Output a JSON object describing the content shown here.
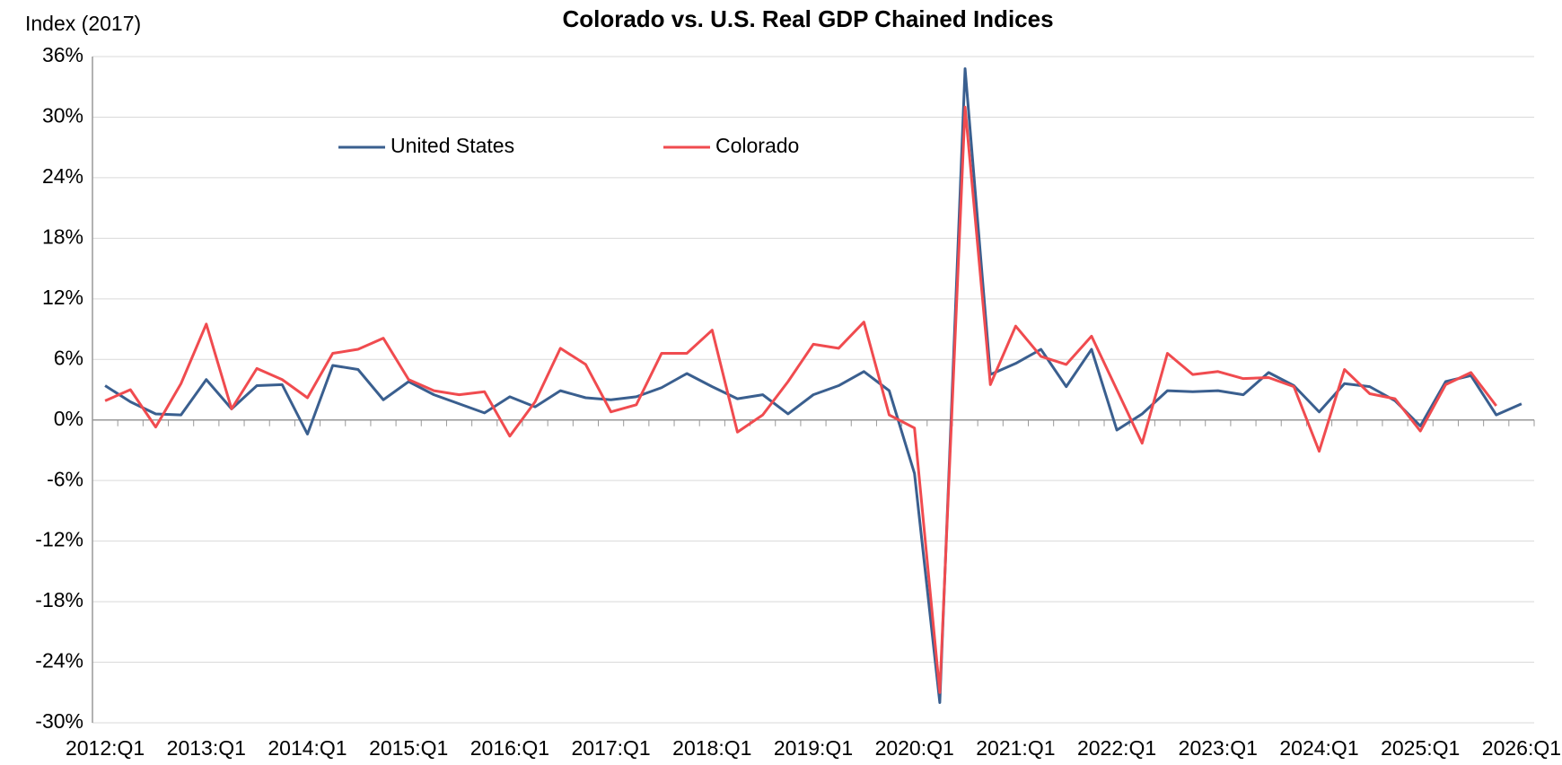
{
  "chart_data": {
    "type": "line",
    "title": "Colorado vs. U.S. Real GDP Chained Indices",
    "y_label": "Index (2017)",
    "categories": [
      "2012:Q1",
      null,
      null,
      null,
      "2013:Q1",
      null,
      null,
      null,
      "2014:Q1",
      null,
      null,
      null,
      "2015:Q1",
      null,
      null,
      null,
      "2016:Q1",
      null,
      null,
      null,
      "2017:Q1",
      null,
      null,
      null,
      "2018:Q1",
      null,
      null,
      null,
      "2019:Q1",
      null,
      null,
      null,
      "2020:Q1",
      null,
      null,
      null,
      "2021:Q1",
      null,
      null,
      null,
      "2022:Q1",
      null,
      null,
      null,
      "2023:Q1",
      null,
      null,
      null,
      "2024:Q1",
      null,
      null,
      null,
      "2025:Q1",
      null,
      null,
      null,
      "2026:Q1"
    ],
    "series": [
      {
        "name": "United States",
        "color": "#3a5f8f",
        "values": [
          3.4,
          1.8,
          0.6,
          0.5,
          4.0,
          1.1,
          3.4,
          3.5,
          -1.4,
          5.4,
          5.0,
          2.0,
          3.8,
          2.5,
          1.6,
          0.7,
          2.3,
          1.3,
          2.9,
          2.2,
          2.0,
          2.3,
          3.2,
          4.6,
          3.3,
          2.1,
          2.5,
          0.6,
          2.5,
          3.4,
          4.8,
          2.9,
          -5.3,
          -28.0,
          34.8,
          4.5,
          5.6,
          7.0,
          3.3,
          7.0,
          -1.0,
          0.6,
          2.9,
          2.8,
          2.9,
          2.5,
          4.7,
          3.4,
          0.8,
          3.6,
          3.3,
          1.9,
          -0.6,
          3.8,
          4.4,
          0.5,
          1.6
        ]
      },
      {
        "name": "Colorado",
        "color": "#f04b4f",
        "values": [
          1.9,
          3.0,
          -0.7,
          3.6,
          9.5,
          1.1,
          5.1,
          4.0,
          2.2,
          6.6,
          7.0,
          8.1,
          4.0,
          2.9,
          2.5,
          2.8,
          -1.6,
          1.8,
          7.1,
          5.5,
          0.8,
          1.5,
          6.6,
          6.6,
          8.9,
          -1.2,
          0.5,
          3.8,
          7.5,
          7.1,
          9.7,
          0.5,
          -0.8,
          -27.0,
          31.0,
          3.5,
          9.3,
          6.3,
          5.5,
          8.3,
          3.0,
          -2.3,
          6.6,
          4.5,
          4.8,
          4.1,
          4.2,
          3.3,
          -3.1,
          5.0,
          2.6,
          2.1,
          -1.1,
          3.5,
          4.7,
          1.4,
          null
        ]
      }
    ],
    "ylim": [
      -30,
      36
    ],
    "yticks": [
      {
        "value": -30,
        "label": "-30%"
      },
      {
        "value": -24,
        "label": "-24%"
      },
      {
        "value": -18,
        "label": "-18%"
      },
      {
        "value": -12,
        "label": "-12%"
      },
      {
        "value": -6,
        "label": "-6%"
      },
      {
        "value": 0,
        "label": "0%"
      },
      {
        "value": 6,
        "label": "6%"
      },
      {
        "value": 12,
        "label": "12%"
      },
      {
        "value": 18,
        "label": "18%"
      },
      {
        "value": 24,
        "label": "24%"
      },
      {
        "value": 30,
        "label": "30%"
      },
      {
        "value": 36,
        "label": "36%"
      }
    ],
    "grid": true
  }
}
